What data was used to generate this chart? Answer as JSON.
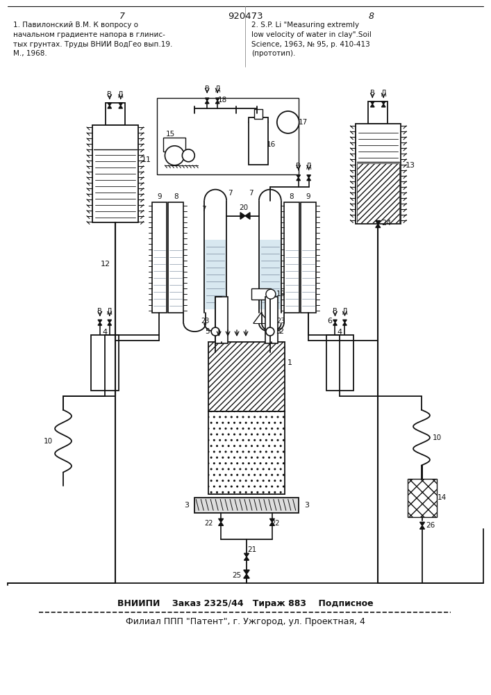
{
  "page_width": 7.07,
  "page_height": 10.0,
  "bg_color": "#ffffff",
  "header": {
    "page_num_left": "7",
    "patent_num": "920473",
    "page_num_right": "8",
    "left_text": "1. Павилонский В.М. К вопросу о\nначальном градиенте напора в глинис-\nтых грунтах. Труды ВНИИ ВодГео вып.19.\nМ., 1968.",
    "right_text": "2. S.P. Li \"Measuring extremly\nlow velocity of water in clay\".Soil\nScience, 1963, № 95, р. 410-413\n(прототип)."
  },
  "footer": {
    "line1": "ВНИИПИ    Заказ 2325/44   Тираж 883    Подписное",
    "line2": "Филиал ППП \"Патент\", г. Ужгород, ул. Проектная, 4"
  }
}
